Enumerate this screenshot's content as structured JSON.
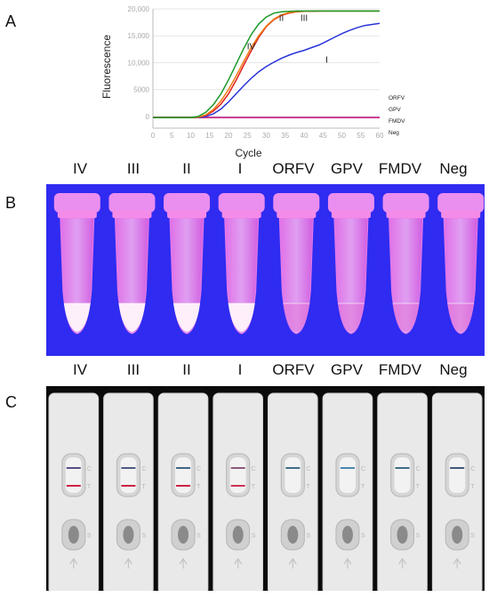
{
  "panels": {
    "a": "A",
    "b": "B",
    "c": "C"
  },
  "chart_data": {
    "type": "line",
    "xlabel": "Cycle",
    "ylabel": "Fluorescence",
    "xlim": [
      0,
      60
    ],
    "ylim": [
      -1500,
      20000
    ],
    "x_ticks": [
      0,
      5,
      10,
      15,
      20,
      25,
      30,
      35,
      40,
      45,
      50,
      55,
      60
    ],
    "y_ticks": [
      0,
      5000,
      10000,
      15000,
      20000
    ],
    "y_tick_labels": [
      "0",
      "5000",
      "10,000",
      "15,000",
      "20,000"
    ],
    "legend_position": "right",
    "legend_labels": [
      "ORFV",
      "GPV",
      "FMDV",
      "Neg"
    ],
    "series": [
      {
        "name": "IV",
        "color": "#1a9a2a",
        "x": [
          0,
          10,
          12,
          14,
          16,
          18,
          20,
          22,
          24,
          26,
          28,
          30,
          32,
          34,
          36,
          38,
          40,
          45,
          50,
          55,
          60
        ],
        "y": [
          -200,
          -200,
          0,
          800,
          2200,
          4200,
          6800,
          9700,
          12600,
          15200,
          17200,
          18500,
          19200,
          19450,
          19550,
          19600,
          19600,
          19600,
          19600,
          19600,
          19600
        ]
      },
      {
        "name": "III",
        "color": "#f07a10",
        "x": [
          0,
          10,
          12,
          14,
          16,
          18,
          20,
          22,
          24,
          26,
          28,
          30,
          32,
          34,
          36,
          38,
          40,
          45,
          50,
          55,
          60
        ],
        "y": [
          -200,
          -200,
          -150,
          300,
          1300,
          2900,
          5000,
          7500,
          10200,
          12800,
          15000,
          16800,
          18100,
          18900,
          19300,
          19500,
          19550,
          19600,
          19600,
          19600,
          19600
        ]
      },
      {
        "name": "II",
        "color": "#e02020",
        "x": [
          0,
          10,
          12,
          14,
          16,
          18,
          20,
          22,
          24,
          26,
          28,
          30,
          32,
          34,
          36,
          38,
          40,
          45,
          50,
          55,
          60
        ],
        "y": [
          -200,
          -200,
          -150,
          200,
          1000,
          2300,
          4200,
          6700,
          9500,
          12200,
          14700,
          16700,
          18000,
          18800,
          19200,
          19450,
          19550,
          19600,
          19600,
          19600,
          19600
        ]
      },
      {
        "name": "I",
        "color": "#2a34d8",
        "x": [
          0,
          10,
          12,
          14,
          16,
          18,
          20,
          22,
          24,
          26,
          28,
          30,
          32,
          34,
          36,
          38,
          40,
          42,
          44,
          46,
          48,
          50,
          52,
          54,
          56,
          58,
          60
        ],
        "y": [
          -200,
          -200,
          -200,
          0,
          500,
          1400,
          2700,
          4200,
          5700,
          7100,
          8300,
          9300,
          10100,
          10800,
          11400,
          11900,
          12300,
          12800,
          13300,
          14000,
          14700,
          15400,
          16000,
          16500,
          16900,
          17100,
          17300
        ]
      },
      {
        "name": "ORFV",
        "color": "#c8338a",
        "x": [
          0,
          60
        ],
        "y": [
          -200,
          -200
        ]
      },
      {
        "name": "GPV",
        "color": "#c8338a",
        "x": [
          0,
          60
        ],
        "y": [
          -200,
          -200
        ]
      },
      {
        "name": "FMDV",
        "color": "#c8338a",
        "x": [
          0,
          60
        ],
        "y": [
          -200,
          -200
        ]
      },
      {
        "name": "Neg",
        "color": "#c8338a",
        "x": [
          0,
          60
        ],
        "y": [
          -200,
          -200
        ]
      }
    ],
    "curve_labels": [
      {
        "text": "IV",
        "series": "IV"
      },
      {
        "text": "II",
        "series": "II"
      },
      {
        "text": "III",
        "series": "III"
      },
      {
        "text": "I",
        "series": "I"
      }
    ]
  },
  "tube_labels": [
    "IV",
    "III",
    "II",
    "I",
    "ORFV",
    "GPV",
    "FMDV",
    "Neg"
  ],
  "tubes": {
    "background": "#2f2bf0",
    "samples": [
      {
        "label": "IV",
        "signal": 1.0
      },
      {
        "label": "III",
        "signal": 1.0
      },
      {
        "label": "II",
        "signal": 1.0
      },
      {
        "label": "I",
        "signal": 0.9
      },
      {
        "label": "ORFV",
        "signal": 0.15
      },
      {
        "label": "GPV",
        "signal": 0.2
      },
      {
        "label": "FMDV",
        "signal": 0.15
      },
      {
        "label": "Neg",
        "signal": 0.0
      }
    ]
  },
  "strip_labels": [
    "IV",
    "III",
    "II",
    "I",
    "ORFV",
    "GPV",
    "FMDV",
    "Neg"
  ],
  "strips": {
    "marks": {
      "control": "C",
      "test": "T",
      "sample": "S"
    },
    "samples": [
      {
        "label": "IV",
        "control_color": "#5a4d88",
        "test_color": "#cc2244",
        "test_line": true
      },
      {
        "label": "III",
        "control_color": "#4f5a86",
        "test_color": "#cc2244",
        "test_line": true
      },
      {
        "label": "II",
        "control_color": "#3f6686",
        "test_color": "#cc2244",
        "test_line": true
      },
      {
        "label": "I",
        "control_color": "#8a5a7a",
        "test_color": "#cc3355",
        "test_line": true
      },
      {
        "label": "ORFV",
        "control_color": "#3d6c86",
        "test_color": "#cccccc",
        "test_line": false
      },
      {
        "label": "GPV",
        "control_color": "#4a86b0",
        "test_color": "#cccccc",
        "test_line": false
      },
      {
        "label": "FMDV",
        "control_color": "#3d6c86",
        "test_color": "#cccccc",
        "test_line": false
      },
      {
        "label": "Neg",
        "control_color": "#3d5a78",
        "test_color": "#cccccc",
        "test_line": false
      }
    ]
  }
}
